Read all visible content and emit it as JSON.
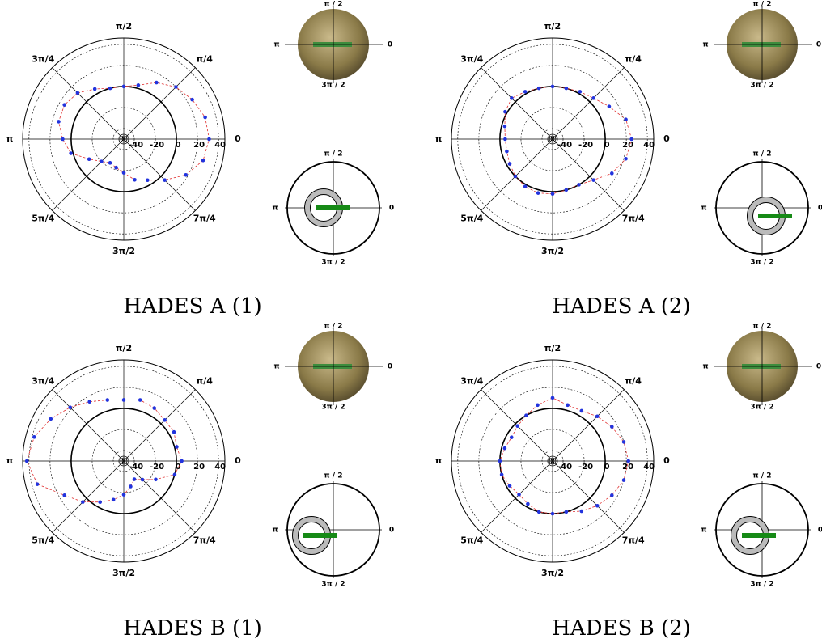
{
  "chart_data": [
    {
      "type": "polar",
      "caption": "HADES A (1)",
      "theta": [
        0,
        0.2618,
        0.5236,
        0.7854,
        1.0472,
        1.309,
        1.5708,
        1.8326,
        2.0944,
        2.3562,
        2.618,
        2.8798,
        3.1416,
        3.4034,
        3.6652,
        3.927,
        4.1888,
        4.4506,
        4.7124,
        4.9742,
        5.236,
        5.4978,
        5.7596,
        6.0214
      ],
      "r": [
        31,
        30,
        25,
        20,
        12,
        3,
        0,
        0,
        5,
        12,
        15,
        14,
        8,
        2,
        -12,
        -20,
        -24,
        -22,
        -18,
        -10,
        -5,
        5,
        18,
        28
      ],
      "color": "#2233dd",
      "line_color": "#e03030",
      "rlim": [
        -50,
        46
      ],
      "rticks": [
        -40,
        -20,
        0,
        20,
        40
      ],
      "reference_r": 0,
      "thetaticks": [
        0,
        {
          "value": 0.7854,
          "label": "π/4"
        },
        {
          "value": 1.5708,
          "label": "π/2"
        },
        {
          "value": 2.3562,
          "label": "3π/4"
        },
        {
          "value": 3.1416,
          "label": "π"
        },
        {
          "value": 3.927,
          "label": "5π/4"
        },
        {
          "value": 4.7124,
          "label": "3π/2"
        },
        {
          "value": 5.4978,
          "label": "7π/4"
        }
      ],
      "photo_labels": {
        "top": "π / 2",
        "left": "π",
        "right": "0",
        "bottom": "3π / 2"
      },
      "schematic_labels": {
        "top": "π / 2",
        "left": "π",
        "right": "0",
        "bottom": "3π / 2"
      }
    },
    {
      "type": "polar",
      "caption": "HADES A (2)",
      "theta": [
        0,
        0.2618,
        0.5236,
        0.7854,
        1.0472,
        1.309,
        1.5708,
        1.8326,
        2.0944,
        2.3562,
        2.618,
        2.8798,
        3.1416,
        3.4034,
        3.6652,
        3.927,
        4.1888,
        4.4506,
        4.7124,
        4.9742,
        5.236,
        5.4978,
        5.7596,
        6.0214
      ],
      "r": [
        25,
        22,
        12,
        5,
        2,
        0,
        0,
        0,
        2,
        5,
        2,
        -3,
        -5,
        -5,
        -3,
        0,
        2,
        3,
        2,
        0,
        0,
        5,
        15,
        22
      ],
      "color": "#2233dd",
      "line_color": "#e03030",
      "rlim": [
        -50,
        46
      ],
      "rticks": [
        -40,
        -20,
        0,
        20,
        40
      ],
      "reference_r": 0,
      "thetaticks": [
        0,
        {
          "value": 0.7854,
          "label": "π/4"
        },
        {
          "value": 1.5708,
          "label": "π/2"
        },
        {
          "value": 2.3562,
          "label": "3π/4"
        },
        {
          "value": 3.1416,
          "label": "π"
        },
        {
          "value": 3.927,
          "label": "5π/4"
        },
        {
          "value": 4.7124,
          "label": "3π/2"
        },
        {
          "value": 5.4978,
          "label": "7π/4"
        }
      ],
      "photo_labels": {
        "top": "π / 2",
        "left": "π",
        "right": "0",
        "bottom": "3π / 2"
      },
      "schematic_labels": {
        "top": "π / 2",
        "left": "π",
        "right": "0",
        "bottom": "3π / 2"
      }
    },
    {
      "type": "polar",
      "caption": "HADES B (1)",
      "theta": [
        0,
        0.2618,
        0.5236,
        0.7854,
        1.0472,
        1.309,
        1.5708,
        1.8326,
        2.0944,
        2.3562,
        2.618,
        2.8798,
        3.1416,
        3.4034,
        3.6652,
        3.927,
        4.1888,
        4.4506,
        4.7124,
        4.9742,
        5.236,
        5.4978,
        5.7596,
        6.0214
      ],
      "r": [
        5,
        2,
        5,
        5,
        8,
        10,
        8,
        10,
        15,
        22,
        30,
        38,
        42,
        35,
        15,
        5,
        -5,
        -12,
        -18,
        -25,
        -30,
        -25,
        -15,
        0
      ],
      "color": "#2233dd",
      "line_color": "#e03030",
      "rlim": [
        -50,
        46
      ],
      "rticks": [
        -40,
        -20,
        0,
        20,
        40
      ],
      "reference_r": 0,
      "thetaticks": [
        0,
        {
          "value": 0.7854,
          "label": "π/4"
        },
        {
          "value": 1.5708,
          "label": "π/2"
        },
        {
          "value": 2.3562,
          "label": "3π/4"
        },
        {
          "value": 3.1416,
          "label": "π"
        },
        {
          "value": 3.927,
          "label": "5π/4"
        },
        {
          "value": 4.7124,
          "label": "3π/2"
        },
        {
          "value": 5.4978,
          "label": "7π/4"
        }
      ],
      "photo_labels": {
        "top": "π / 2",
        "left": "π",
        "right": "0",
        "bottom": "3π / 2"
      },
      "schematic_labels": {
        "top": "π / 2",
        "left": "π",
        "right": "0",
        "bottom": "3π / 2"
      }
    },
    {
      "type": "polar",
      "caption": "HADES B (2)",
      "theta": [
        0,
        0.2618,
        0.5236,
        0.7854,
        1.0472,
        1.309,
        1.5708,
        1.8326,
        2.0944,
        2.3562,
        2.618,
        2.8798,
        3.1416,
        3.4034,
        3.6652,
        3.927,
        4.1888,
        4.4506,
        4.7124,
        4.9742,
        5.236,
        5.4978,
        5.7596,
        6.0214
      ],
      "r": [
        22,
        20,
        15,
        10,
        5,
        5,
        10,
        5,
        0,
        -3,
        -5,
        -3,
        0,
        0,
        -3,
        -5,
        -3,
        0,
        0,
        0,
        5,
        10,
        15,
        20
      ],
      "color": "#2233dd",
      "line_color": "#e03030",
      "rlim": [
        -50,
        46
      ],
      "rticks": [
        -40,
        -20,
        0,
        20,
        40
      ],
      "reference_r": 0,
      "thetaticks": [
        0,
        {
          "value": 0.7854,
          "label": "π/4"
        },
        {
          "value": 1.5708,
          "label": "π/2"
        },
        {
          "value": 2.3562,
          "label": "3π/4"
        },
        {
          "value": 3.1416,
          "label": "π"
        },
        {
          "value": 3.927,
          "label": "5π/4"
        },
        {
          "value": 4.7124,
          "label": "3π/2"
        },
        {
          "value": 5.4978,
          "label": "7π/4"
        }
      ],
      "photo_labels": {
        "top": "π / 2",
        "left": "π",
        "right": "0",
        "bottom": "3π / 2"
      },
      "schematic_labels": {
        "top": "π / 2",
        "left": "π",
        "right": "0",
        "bottom": "3π / 2"
      }
    }
  ]
}
